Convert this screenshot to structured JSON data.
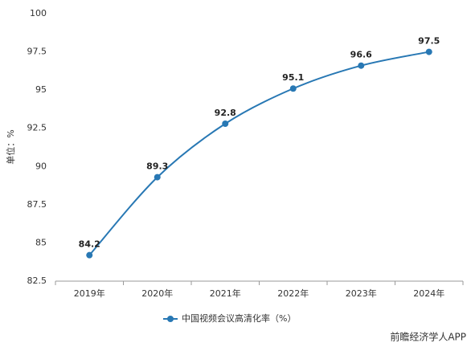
{
  "chart_data": {
    "type": "line",
    "y_label": "单位：%",
    "categories": [
      "2019年",
      "2020年",
      "2021年",
      "2022年",
      "2023年",
      "2024年"
    ],
    "series": [
      {
        "name": "中国视频会议高清化率（%）",
        "color": "#2878b4",
        "values": [
          84.2,
          89.3,
          92.8,
          95.1,
          96.6,
          97.5
        ]
      }
    ],
    "ylim": [
      82.5,
      100
    ],
    "yticks": [
      82.5,
      85,
      87.5,
      90,
      92.5,
      95,
      97.5,
      100
    ],
    "smooth": true,
    "source": "前瞻经济学人APP"
  }
}
